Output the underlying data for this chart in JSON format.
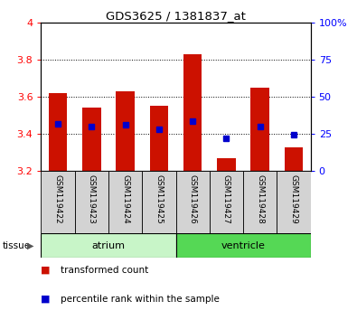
{
  "title": "GDS3625 / 1381837_at",
  "samples": [
    "GSM119422",
    "GSM119423",
    "GSM119424",
    "GSM119425",
    "GSM119426",
    "GSM119427",
    "GSM119428",
    "GSM119429"
  ],
  "tissue_groups": [
    {
      "label": "atrium",
      "color": "#c8f5c8",
      "start": 0,
      "end": 4
    },
    {
      "label": "ventricle",
      "color": "#55d855",
      "start": 4,
      "end": 8
    }
  ],
  "bar_bottom": 3.2,
  "bar_tops": [
    3.62,
    3.54,
    3.63,
    3.55,
    3.83,
    3.27,
    3.65,
    3.33
  ],
  "percentile_values": [
    3.455,
    3.44,
    3.45,
    3.425,
    3.47,
    3.375,
    3.44,
    3.395
  ],
  "bar_color": "#cc1100",
  "percentile_color": "#0000cc",
  "ylim": [
    3.2,
    4.0
  ],
  "yticks": [
    3.2,
    3.4,
    3.6,
    3.8,
    4.0
  ],
  "ytick_labels": [
    "3.2",
    "3.4",
    "3.6",
    "3.8",
    "4"
  ],
  "y2lim": [
    0,
    100
  ],
  "y2ticks": [
    0,
    25,
    50,
    75,
    100
  ],
  "y2ticklabels": [
    "0",
    "25",
    "50",
    "75",
    "100%"
  ],
  "bar_width": 0.55,
  "tissue_label": "tissue",
  "legend_items": [
    {
      "color": "#cc1100",
      "label": "transformed count"
    },
    {
      "color": "#0000cc",
      "label": "percentile rank within the sample"
    }
  ]
}
